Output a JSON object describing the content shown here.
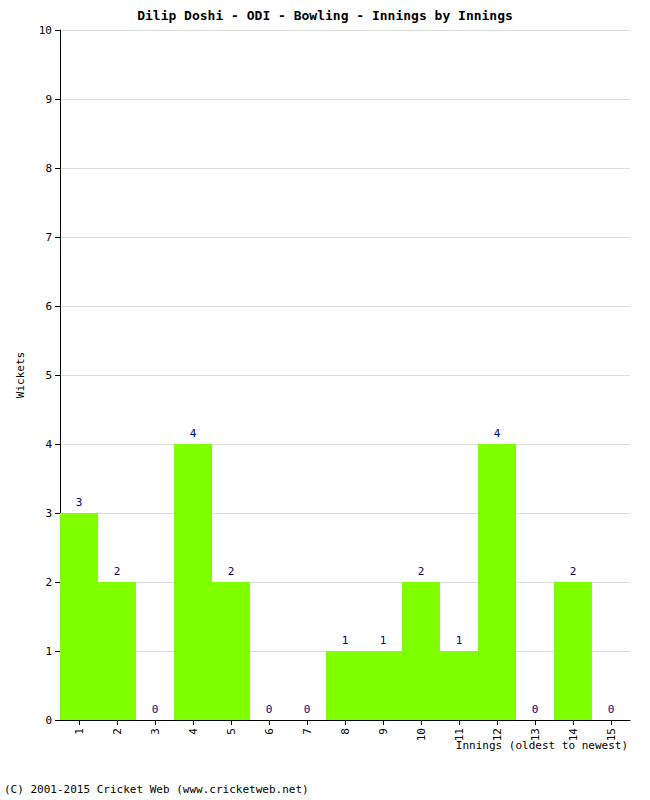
{
  "chart_data": {
    "type": "bar",
    "title": "Dilip Doshi - ODI - Bowling - Innings by Innings",
    "x_label": "Innings (oldest to newest)",
    "y_label": "Wickets",
    "annotations": [
      "(C) 2001-2015 Cricket Web (www.cricketweb.net)"
    ],
    "categories": [
      "1",
      "2",
      "3",
      "4",
      "5",
      "6",
      "7",
      "8",
      "9",
      "10",
      "11",
      "12",
      "13",
      "14",
      "15"
    ],
    "values": [
      3,
      2,
      0,
      4,
      2,
      0,
      0,
      1,
      1,
      2,
      1,
      4,
      0,
      2,
      0
    ],
    "color": "#80ff00",
    "ylim": [
      0,
      10
    ],
    "yticks": [
      0,
      1,
      2,
      3,
      4,
      5,
      6,
      7,
      8,
      9,
      10
    ],
    "grid": true,
    "data_labels": true
  }
}
